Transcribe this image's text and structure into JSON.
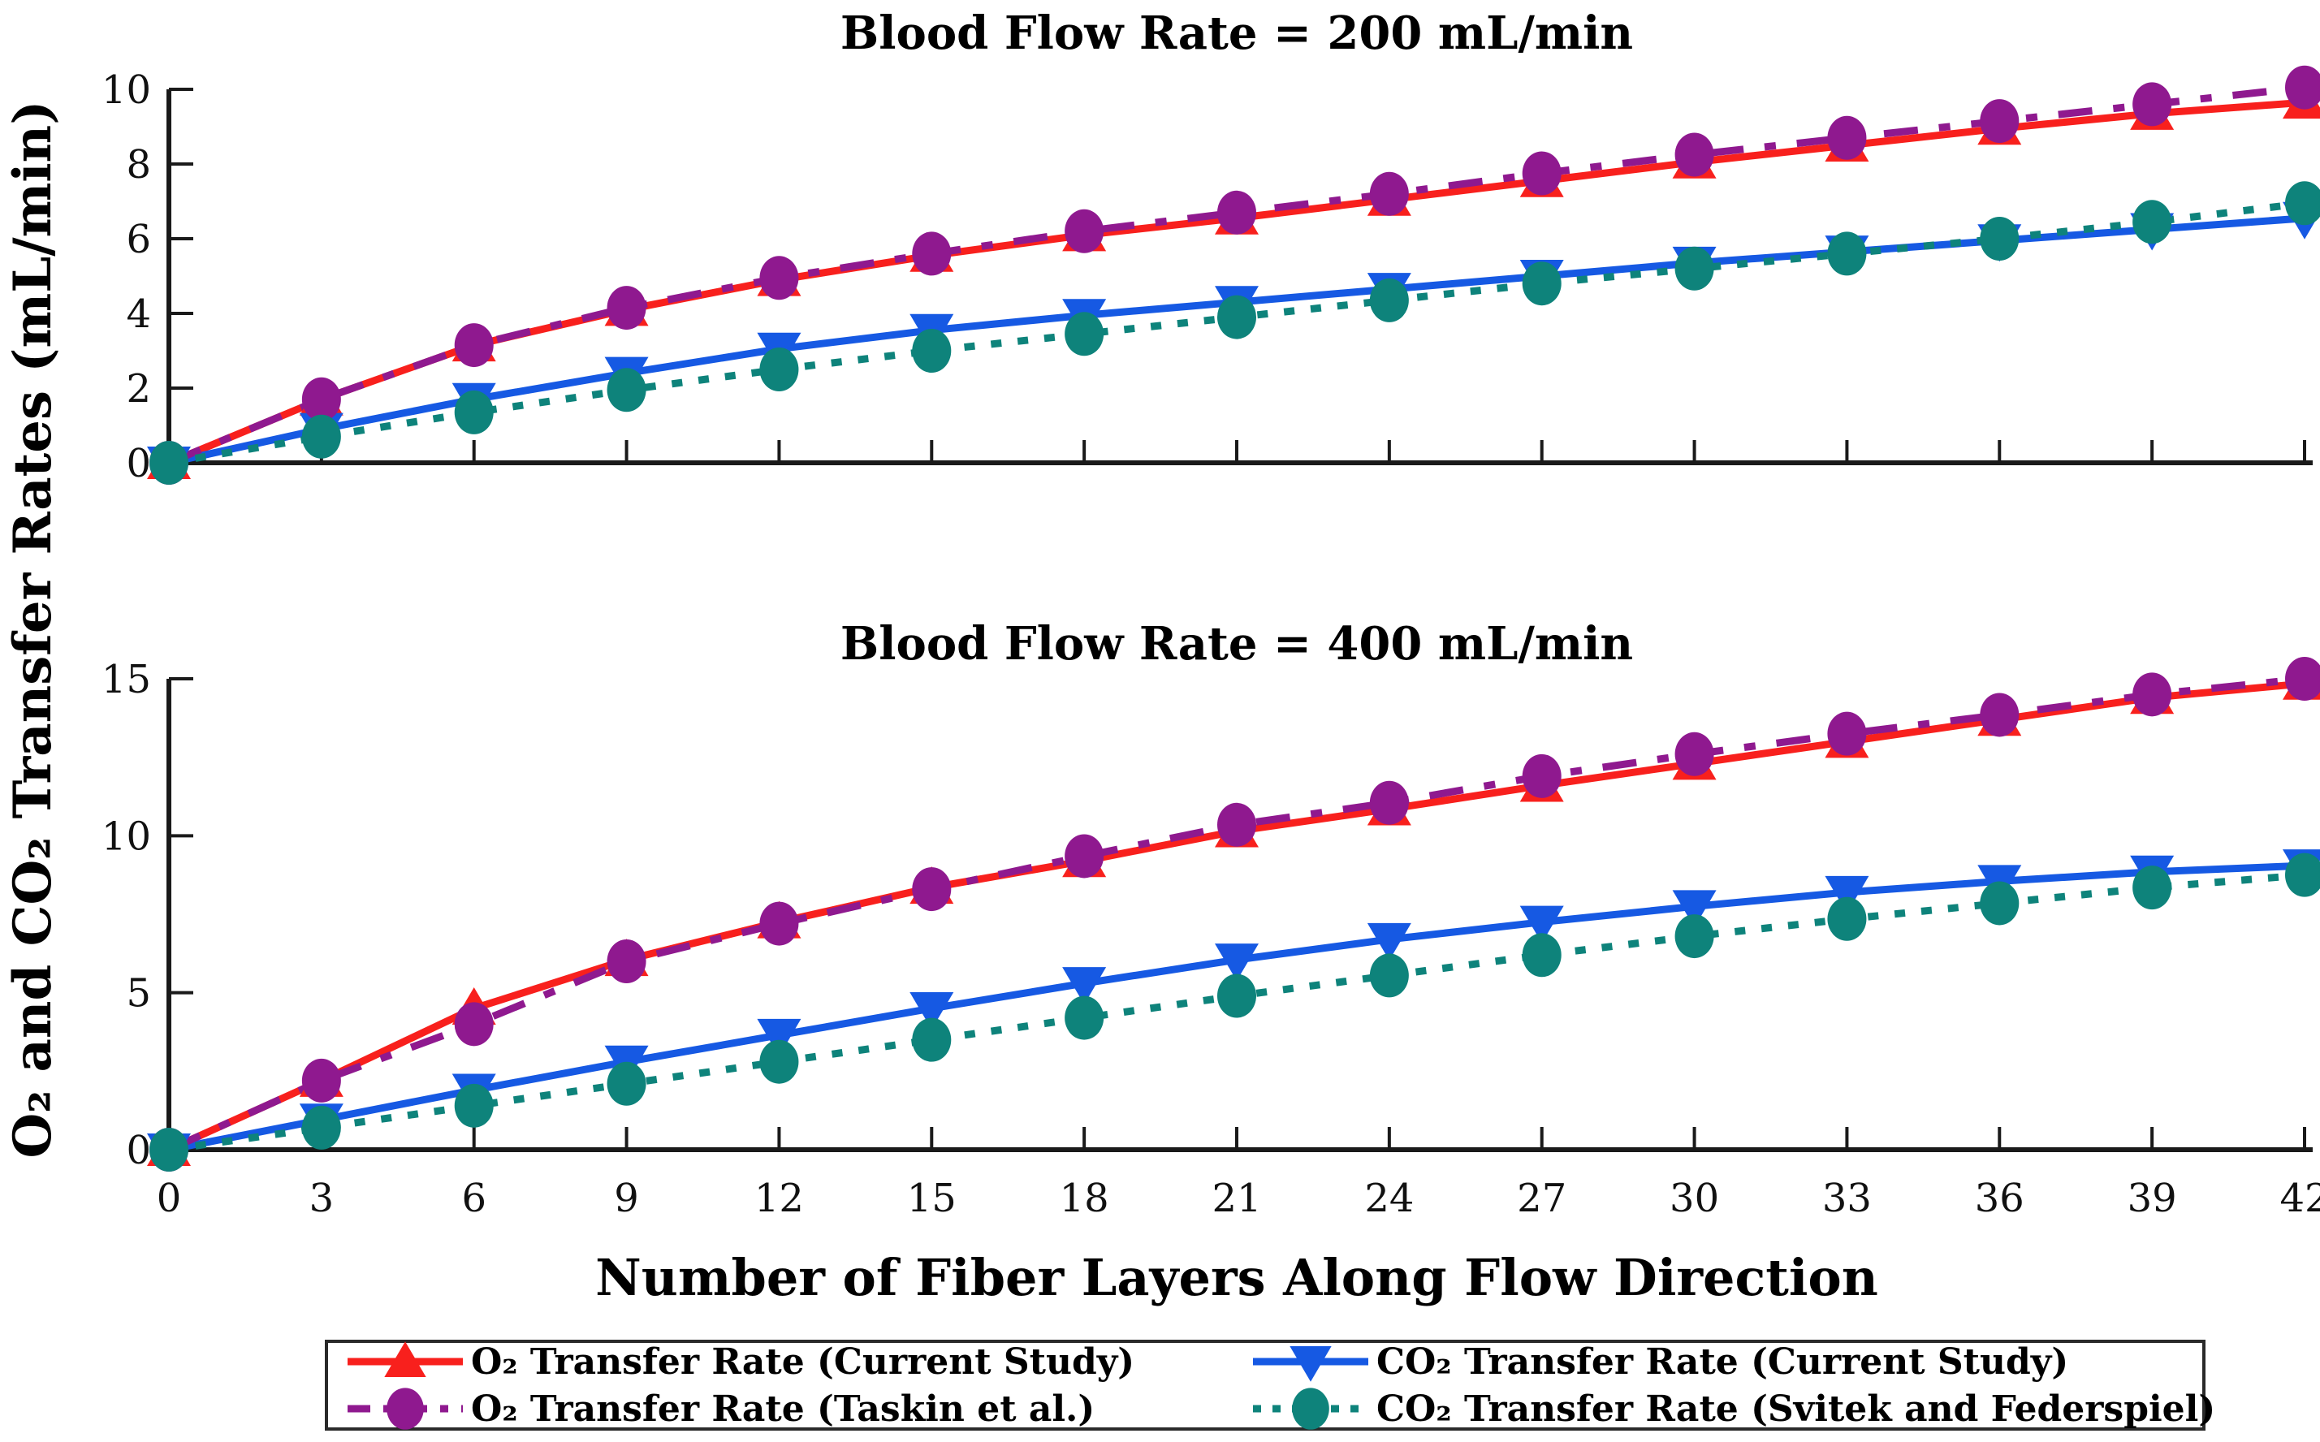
{
  "figure": {
    "y_axis_label": "O₂ and CO₂ Transfer Rates (mL/min)",
    "x_axis_label": "Number of Fiber Layers Along Flow Direction",
    "background": "#ffffff",
    "axis_color": "#1a1a1a",
    "text_color": "#111111"
  },
  "legend": {
    "position": "bottom",
    "items": [
      {
        "label": "O₂ Transfer Rate (Current Study)"
      },
      {
        "label": "CO₂ Transfer Rate (Current Study)"
      },
      {
        "label": "O₂ Transfer Rate (Taskin et al.)"
      },
      {
        "label": "CO₂ Transfer Rate (Svitek and Federspiel)"
      }
    ]
  },
  "chart_data": [
    {
      "type": "line",
      "title": "Blood Flow Rate = 200 mL/min",
      "xlabel": "Number of Fiber Layers Along Flow Direction",
      "ylabel": "O₂ and CO₂ Transfer Rates (mL/min)",
      "x": [
        0,
        3,
        6,
        9,
        12,
        15,
        18,
        21,
        24,
        27,
        30,
        33,
        36,
        39,
        42
      ],
      "xlim": [
        0,
        42
      ],
      "ylim": [
        0,
        10
      ],
      "xticks": [
        0,
        3,
        6,
        9,
        12,
        15,
        18,
        21,
        24,
        27,
        30,
        33,
        36,
        39,
        42
      ],
      "yticks": [
        0,
        2,
        4,
        6,
        8,
        10
      ],
      "show_x_tick_labels": false,
      "grid": false,
      "series": [
        {
          "id": "o2-current",
          "name": "O₂ Transfer Rate (Current Study)",
          "color": "#F8201D",
          "dash": null,
          "marker": "triangle-up",
          "values": [
            0,
            1.7,
            3.15,
            4.1,
            4.9,
            5.55,
            6.1,
            6.55,
            7.05,
            7.55,
            8.05,
            8.5,
            8.95,
            9.35,
            9.65
          ]
        },
        {
          "id": "co2-current",
          "name": "CO₂ Transfer Rate (Current Study)",
          "color": "#1659E3",
          "dash": null,
          "marker": "triangle-down",
          "values": [
            0,
            0.9,
            1.7,
            2.4,
            3.05,
            3.55,
            3.95,
            4.3,
            4.65,
            5.0,
            5.35,
            5.65,
            5.95,
            6.25,
            6.55
          ]
        },
        {
          "id": "o2-taskin",
          "name": "O₂ Transfer Rate (Taskin et al.)",
          "color": "#8F198F",
          "dash": "42 26 14 26",
          "marker": "circle",
          "values": [
            0,
            1.7,
            3.15,
            4.15,
            4.95,
            5.6,
            6.2,
            6.7,
            7.2,
            7.75,
            8.25,
            8.7,
            9.15,
            9.6,
            10.05
          ]
        },
        {
          "id": "co2-svitek",
          "name": "CO₂ Transfer Rate (Svitek and Federspiel)",
          "color": "#0E837B",
          "dash": "13 20",
          "marker": "circle",
          "values": [
            0,
            0.7,
            1.35,
            1.95,
            2.5,
            3.0,
            3.45,
            3.9,
            4.35,
            4.8,
            5.2,
            5.6,
            6.0,
            6.45,
            6.95
          ]
        }
      ]
    },
    {
      "type": "line",
      "title": "Blood Flow Rate = 400 mL/min",
      "xlabel": "Number of Fiber Layers Along Flow Direction",
      "ylabel": "O₂ and CO₂ Transfer Rates (mL/min)",
      "x": [
        0,
        3,
        6,
        9,
        12,
        15,
        18,
        21,
        24,
        27,
        30,
        33,
        36,
        39,
        42
      ],
      "xlim": [
        0,
        42
      ],
      "ylim": [
        0,
        15
      ],
      "xticks": [
        0,
        3,
        6,
        9,
        12,
        15,
        18,
        21,
        24,
        27,
        30,
        33,
        36,
        39,
        42
      ],
      "yticks": [
        0,
        5,
        10,
        15
      ],
      "show_x_tick_labels": true,
      "grid": false,
      "series": [
        {
          "id": "o2-current",
          "name": "O₂ Transfer Rate (Current Study)",
          "color": "#F8201D",
          "dash": null,
          "marker": "triangle-up",
          "values": [
            0,
            2.2,
            4.5,
            6.05,
            7.25,
            8.35,
            9.2,
            10.15,
            10.85,
            11.6,
            12.3,
            13.0,
            13.7,
            14.4,
            14.85
          ]
        },
        {
          "id": "co2-current",
          "name": "CO₂ Transfer Rate (Current Study)",
          "color": "#1659E3",
          "dash": null,
          "marker": "triangle-down",
          "values": [
            0,
            0.95,
            1.9,
            2.8,
            3.65,
            4.5,
            5.3,
            6.05,
            6.7,
            7.25,
            7.75,
            8.2,
            8.55,
            8.85,
            9.05
          ]
        },
        {
          "id": "o2-taskin",
          "name": "O₂ Transfer Rate (Taskin et al.)",
          "color": "#8F198F",
          "dash": "42 26 14 26",
          "marker": "circle",
          "values": [
            0,
            2.2,
            4.0,
            6.0,
            7.2,
            8.3,
            9.35,
            10.35,
            11.05,
            11.9,
            12.6,
            13.25,
            13.85,
            14.5,
            15.0
          ]
        },
        {
          "id": "co2-svitek",
          "name": "CO₂ Transfer Rate (Svitek and Federspiel)",
          "color": "#0E837B",
          "dash": "13 20",
          "marker": "circle",
          "values": [
            0,
            0.7,
            1.4,
            2.1,
            2.8,
            3.5,
            4.2,
            4.9,
            5.55,
            6.2,
            6.8,
            7.35,
            7.85,
            8.35,
            8.75
          ]
        }
      ]
    }
  ]
}
